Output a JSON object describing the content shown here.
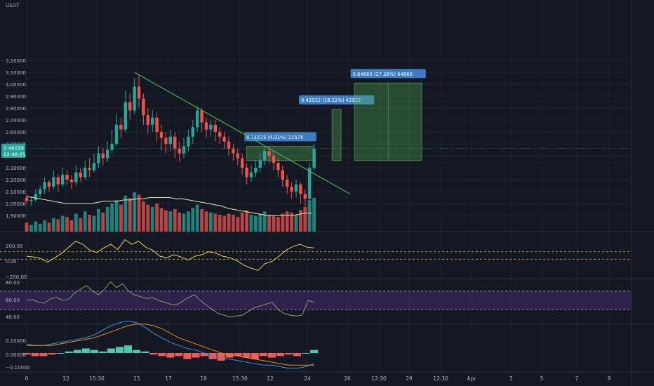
{
  "chart_data": {
    "type": "candlestick",
    "currency": "USDT",
    "current_price": {
      "value": "2.46039",
      "countdown": "02:48:25"
    },
    "price_axis_ticks": [
      "3.20000",
      "3.10000",
      "3.00000",
      "2.90000",
      "2.80000",
      "2.70000",
      "2.60000",
      "2.50000",
      "2.40000",
      "2.30000",
      "2.20000",
      "2.10000",
      "2.00000",
      "1.90000"
    ],
    "x_axis_ticks": [
      "0",
      "12",
      "15:30",
      "15",
      "17",
      "19",
      "15:30",
      "22",
      "24",
      "26",
      "12:30",
      "29",
      "12:30",
      "Apr",
      "3",
      "5",
      "7",
      "9"
    ],
    "candles": [
      [
        2.05,
        2.02,
        2.08,
        2.0
      ],
      [
        2.02,
        2.03,
        2.06,
        1.98
      ],
      [
        2.03,
        2.08,
        2.12,
        2.01
      ],
      [
        2.08,
        2.12,
        2.15,
        2.05
      ],
      [
        2.12,
        2.18,
        2.22,
        2.08
      ],
      [
        2.18,
        2.14,
        2.2,
        2.1
      ],
      [
        2.14,
        2.22,
        2.28,
        2.12
      ],
      [
        2.22,
        2.16,
        2.25,
        2.1
      ],
      [
        2.16,
        2.24,
        2.3,
        2.14
      ],
      [
        2.24,
        2.2,
        2.28,
        2.16
      ],
      [
        2.2,
        2.18,
        2.24,
        2.12
      ],
      [
        2.18,
        2.26,
        2.32,
        2.15
      ],
      [
        2.26,
        2.22,
        2.3,
        2.18
      ],
      [
        2.22,
        2.3,
        2.36,
        2.2
      ],
      [
        2.3,
        2.28,
        2.38,
        2.22
      ],
      [
        2.28,
        2.34,
        2.42,
        2.26
      ],
      [
        2.34,
        2.42,
        2.48,
        2.3
      ],
      [
        2.42,
        2.38,
        2.46,
        2.32
      ],
      [
        2.38,
        2.45,
        2.52,
        2.35
      ],
      [
        2.45,
        2.5,
        2.62,
        2.42
      ],
      [
        2.5,
        2.66,
        2.75,
        2.48
      ],
      [
        2.66,
        2.62,
        2.72,
        2.55
      ],
      [
        2.62,
        2.85,
        2.95,
        2.6
      ],
      [
        2.85,
        2.78,
        2.92,
        2.7
      ],
      [
        2.78,
        2.98,
        3.05,
        2.75
      ],
      [
        2.98,
        2.88,
        3.08,
        2.8
      ],
      [
        2.88,
        2.74,
        2.92,
        2.66
      ],
      [
        2.74,
        2.66,
        2.8,
        2.58
      ],
      [
        2.66,
        2.72,
        2.78,
        2.6
      ],
      [
        2.72,
        2.6,
        2.76,
        2.52
      ],
      [
        2.6,
        2.55,
        2.66,
        2.45
      ],
      [
        2.55,
        2.5,
        2.6,
        2.42
      ],
      [
        2.5,
        2.56,
        2.62,
        2.44
      ],
      [
        2.56,
        2.46,
        2.6,
        2.38
      ],
      [
        2.46,
        2.42,
        2.52,
        2.35
      ],
      [
        2.42,
        2.48,
        2.55,
        2.38
      ],
      [
        2.48,
        2.56,
        2.62,
        2.44
      ],
      [
        2.56,
        2.64,
        2.7,
        2.5
      ],
      [
        2.64,
        2.78,
        2.82,
        2.6
      ],
      [
        2.78,
        2.68,
        2.8,
        2.6
      ],
      [
        2.68,
        2.62,
        2.72,
        2.55
      ],
      [
        2.62,
        2.66,
        2.7,
        2.56
      ],
      [
        2.66,
        2.6,
        2.7,
        2.52
      ],
      [
        2.6,
        2.56,
        2.64,
        2.5
      ],
      [
        2.56,
        2.52,
        2.6,
        2.46
      ],
      [
        2.52,
        2.46,
        2.56,
        2.4
      ],
      [
        2.46,
        2.42,
        2.5,
        2.36
      ],
      [
        2.42,
        2.38,
        2.46,
        2.32
      ],
      [
        2.38,
        2.3,
        2.42,
        2.24
      ],
      [
        2.3,
        2.22,
        2.34,
        2.16
      ],
      [
        2.22,
        2.26,
        2.32,
        2.18
      ],
      [
        2.26,
        2.3,
        2.36,
        2.22
      ],
      [
        2.3,
        2.36,
        2.42,
        2.26
      ],
      [
        2.36,
        2.44,
        2.48,
        2.32
      ],
      [
        2.44,
        2.4,
        2.48,
        2.34
      ],
      [
        2.4,
        2.34,
        2.44,
        2.28
      ],
      [
        2.34,
        2.28,
        2.38,
        2.22
      ],
      [
        2.28,
        2.2,
        2.32,
        2.14
      ],
      [
        2.2,
        2.14,
        2.24,
        2.08
      ],
      [
        2.14,
        2.1,
        2.18,
        2.04
      ],
      [
        2.1,
        2.16,
        2.2,
        2.05
      ],
      [
        2.16,
        2.08,
        2.18,
        2.0
      ],
      [
        2.08,
        2.04,
        2.12,
        1.98
      ],
      [
        2.04,
        2.3,
        2.34,
        2.02
      ],
      [
        2.3,
        2.46,
        2.5,
        2.28
      ]
    ],
    "volume": [
      8,
      6,
      9,
      7,
      10,
      8,
      12,
      11,
      14,
      13,
      10,
      16,
      12,
      18,
      15,
      14,
      20,
      17,
      22,
      25,
      28,
      24,
      32,
      30,
      35,
      33,
      27,
      24,
      22,
      25,
      21,
      19,
      18,
      20,
      17,
      16,
      18,
      21,
      24,
      20,
      18,
      17,
      16,
      15,
      14,
      16,
      15,
      13,
      17,
      19,
      15,
      14,
      16,
      18,
      15,
      14,
      13,
      16,
      18,
      17,
      15,
      19,
      22,
      28,
      30
    ],
    "moving_average": [
      2.06,
      2.05,
      2.04,
      2.03,
      2.02,
      2.01,
      2.0,
      2.0,
      2.0,
      2.0,
      2.0,
      2.01,
      2.02,
      2.02,
      2.02,
      2.03,
      2.03,
      2.04,
      2.04,
      2.05,
      2.05,
      2.05,
      2.05,
      2.04,
      2.04,
      2.03,
      2.02,
      2.01,
      2.0,
      1.99,
      1.98,
      1.96,
      1.95,
      1.94,
      1.93,
      1.92,
      1.91,
      1.9,
      1.9,
      1.9,
      1.9,
      1.9,
      1.91,
      1.92,
      1.92
    ],
    "trendline": {
      "start": {
        "bar": 24,
        "price": 3.1
      },
      "end": {
        "bar": 72,
        "price": 2.08
      }
    },
    "measurements": [
      {
        "label": "0.11575 (4.91%) 11575",
        "from_bar": 49,
        "to_bar": 64,
        "top": 2.48,
        "bottom": 2.36
      },
      {
        "label": "0.42932 (18.22%) 42932",
        "from_bar": 68,
        "to_bar": 70,
        "top": 2.79,
        "bottom": 2.36
      },
      {
        "label": "0.64660 (27.38%) 64660",
        "from_bar": 73,
        "to_bar": 88,
        "top": 3.01,
        "bottom": 2.36
      }
    ],
    "indicators": [
      {
        "name": "cci",
        "ticks": [
          "200.00",
          "0.00",
          "−200.00"
        ],
        "bands": [
          100,
          0
        ],
        "values": [
          40,
          30,
          10,
          -40,
          20,
          80,
          160,
          240,
          200,
          120,
          90,
          150,
          200,
          130,
          260,
          200,
          240,
          160,
          120,
          40,
          20,
          60,
          30,
          -10,
          40,
          60,
          100,
          80,
          40,
          20,
          -20,
          -80,
          -120,
          -150,
          -60,
          -30,
          40,
          120,
          170,
          200,
          160,
          150
        ]
      },
      {
        "name": "rsi",
        "ticks": [
          "80.00",
          "60.00",
          "40.00"
        ],
        "bands": [
          70,
          50
        ],
        "values": [
          60,
          61,
          58,
          57,
          62,
          63,
          60,
          61,
          68,
          72,
          76,
          70,
          66,
          72,
          80,
          74,
          78,
          70,
          66,
          64,
          62,
          63,
          60,
          58,
          56,
          55,
          59,
          63,
          66,
          60,
          55,
          50,
          46,
          44,
          42,
          43,
          44,
          48,
          52,
          54,
          56,
          58,
          50,
          46,
          44,
          43,
          44,
          60,
          58
        ]
      },
      {
        "name": "macd",
        "ticks": [
          "0.10000",
          "0.00000",
          "−0.10000"
        ],
        "macd": [
          0.06,
          0.05,
          0.05,
          0.06,
          0.07,
          0.08,
          0.09,
          0.1,
          0.12,
          0.15,
          0.18,
          0.2,
          0.21,
          0.2,
          0.17,
          0.13,
          0.1,
          0.07,
          0.05,
          0.03,
          0.02,
          0.0,
          -0.02,
          -0.03,
          -0.04,
          -0.05,
          -0.06,
          -0.07,
          -0.08,
          -0.08,
          -0.09,
          -0.1,
          -0.1,
          -0.09,
          -0.07
        ],
        "signal": [
          0.05,
          0.05,
          0.05,
          0.05,
          0.06,
          0.07,
          0.08,
          0.09,
          0.1,
          0.12,
          0.14,
          0.16,
          0.18,
          0.19,
          0.19,
          0.18,
          0.16,
          0.13,
          0.1,
          0.08,
          0.06,
          0.04,
          0.02,
          0.0,
          -0.01,
          -0.02,
          -0.03,
          -0.04,
          -0.05,
          -0.06,
          -0.07,
          -0.08,
          -0.08,
          -0.08,
          -0.08
        ],
        "histogram": [
          -0.01,
          -0.02,
          -0.02,
          -0.01,
          0.0,
          0.01,
          0.02,
          0.03,
          0.02,
          0.01,
          0.03,
          0.04,
          0.05,
          0.02,
          0.01,
          -0.01,
          -0.02,
          -0.03,
          -0.02,
          -0.04,
          -0.03,
          -0.02,
          -0.04,
          -0.05,
          -0.03,
          -0.02,
          -0.03,
          -0.04,
          -0.02,
          -0.03,
          -0.02,
          -0.01,
          -0.02,
          0.0,
          0.02
        ]
      }
    ]
  }
}
